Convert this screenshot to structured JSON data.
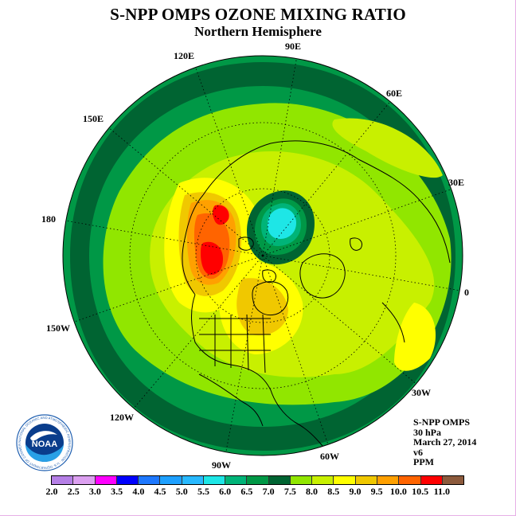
{
  "title": "S-NPP OMPS OZONE MIXING RATIO",
  "subtitle": "Northern Hemisphere",
  "longitude_labels": {
    "e120": "120E",
    "e90": "90E",
    "e60": "60E",
    "e150": "150E",
    "e30": "30E",
    "e180": "180",
    "e0": "0",
    "w150": "150W",
    "w30": "30W",
    "w120": "120W",
    "w60": "60W",
    "w90": "90W"
  },
  "info": {
    "instrument": "S-NPP OMPS",
    "level": "30 hPa",
    "date": "March 27, 2014",
    "version": "v6",
    "units": "PPM"
  },
  "logo": {
    "text": "NOAA",
    "ring_text": "NATIONAL OCEANIC AND ATMOSPHERIC ADMINISTRATION · U.S. DEPARTMENT OF COMMERCE"
  },
  "colorbar": {
    "ticks": [
      "2.0",
      "2.5",
      "3.0",
      "3.5",
      "4.0",
      "4.5",
      "5.0",
      "5.5",
      "6.0",
      "6.5",
      "7.0",
      "7.5",
      "8.0",
      "8.5",
      "9.0",
      "9.5",
      "10.0",
      "10.5",
      "11.0"
    ],
    "colors": [
      "#b57fe6",
      "#dca0f0",
      "#ff00ff",
      "#0000ff",
      "#1e78ff",
      "#1ea0ff",
      "#28b9ff",
      "#1ee6e6",
      "#00b478",
      "#009846",
      "#006432",
      "#91e600",
      "#c8f000",
      "#ffff00",
      "#f0c800",
      "#ffa000",
      "#ff6400",
      "#ff0000",
      "#8c5a3c"
    ]
  },
  "map_colors": {
    "ppm_6_5": "#009846",
    "ppm_6_0": "#00b478",
    "ppm_7_0": "#006432",
    "ppm_7_5": "#91e600",
    "ppm_8_0": "#c8f000",
    "ppm_8_5": "#ffff00",
    "ppm_9_0": "#f0c800",
    "ppm_9_5": "#ffa000",
    "ppm_10_0": "#ff6400",
    "ppm_10_5": "#ff0000",
    "ppm_5_5": "#1ee6e6"
  }
}
